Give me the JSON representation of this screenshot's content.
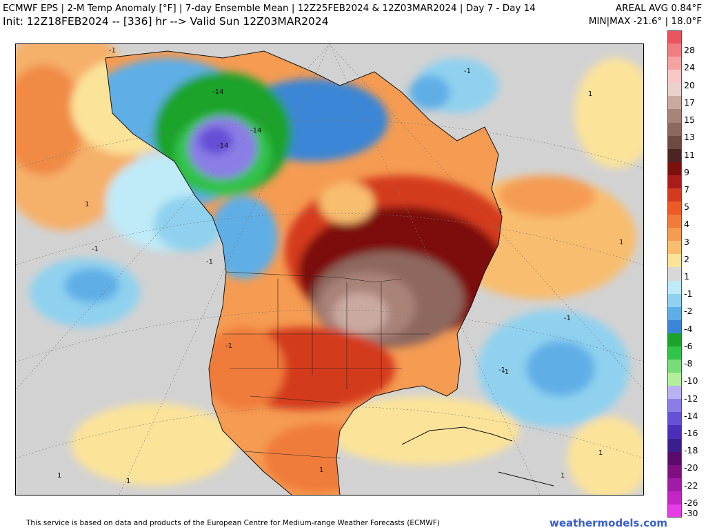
{
  "header": {
    "title": "ECMWF EPS | 2-M Temp Anomaly [°F] | 7-day Ensemble Mean | 12Z25FEB2024 & 12Z03MAR2024 | Day 7 - Day 14",
    "init": "Init: 12Z18FEB2024 -- [336] hr --> Valid Sun 12Z03MAR2024",
    "areal_avg": "AREAL AVG 0.84°F",
    "min_max": "MIN|MAX -21.6° | 18.0°F"
  },
  "legend": {
    "labels": [
      "28",
      "24",
      "20",
      "17",
      "15",
      "13",
      "11",
      "9",
      "7",
      "5",
      "4",
      "3",
      "2",
      "1",
      "-1",
      "-2",
      "-4",
      "-6",
      "-8",
      "-10",
      "-12",
      "-14",
      "-16",
      "-18",
      "-20",
      "-22",
      "-26",
      "-30"
    ],
    "colors": [
      "#e8555d",
      "#f07d80",
      "#f4a3a3",
      "#f8c8c6",
      "#e9d2cc",
      "#c9a9a0",
      "#a98278",
      "#8e675e",
      "#6e4a42",
      "#4a2521",
      "#7d0f0f",
      "#a81c1c",
      "#d43a1e",
      "#ec5a26",
      "#f07b3a",
      "#f59b52",
      "#f8bd6e",
      "#fbe39a",
      "#d8d8d8",
      "#bfeaf7",
      "#8fd1ef",
      "#5faee6",
      "#3a86d6",
      "#1ba32b",
      "#33c24a",
      "#78dc7a",
      "#b2ee9c",
      "#b8b3f0",
      "#8a7ee6",
      "#6650d6",
      "#4b2fb8",
      "#3a1f8c",
      "#5a0a6a",
      "#7f1082",
      "#a01ca6",
      "#c226c4",
      "#e63ce6"
    ]
  },
  "map": {
    "contour_labels": [
      "-1",
      "-1",
      "-1",
      "-1",
      "-1",
      "-1",
      "-1",
      "-14",
      "-14",
      "-14",
      "1",
      "1",
      "1",
      "1",
      "1",
      "1",
      "1",
      "1",
      "1",
      "-1"
    ]
  },
  "footer": {
    "attribution": "This service is based on data and products of the European Centre for Medium-range Weather Forecasts (ECMWF)",
    "brand": "weathermodels.com"
  }
}
